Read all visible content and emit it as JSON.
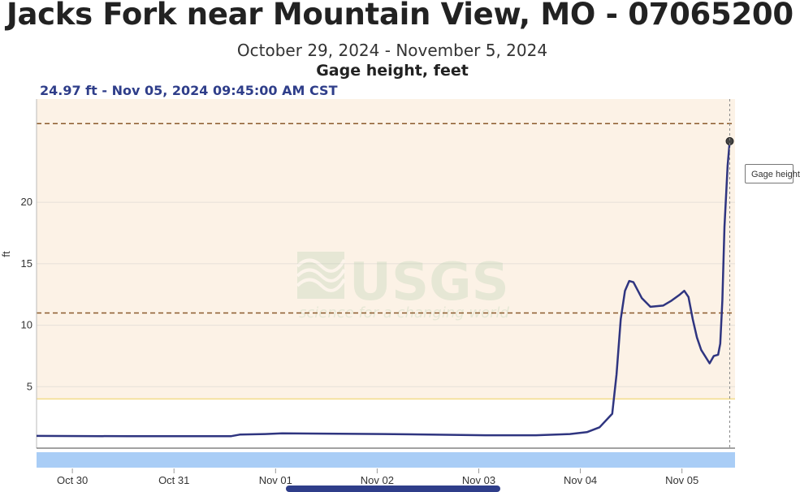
{
  "header": {
    "title": "Jacks Fork near Mountain View, MO - 07065200",
    "date_range": "October 29, 2024 - November 5, 2024",
    "parameter": "Gage height, feet",
    "latest_reading": "24.97 ft - Nov 05, 2024 09:45:00 AM CST"
  },
  "tooltip": {
    "label": "Gage height"
  },
  "watermark": {
    "logo_text": "USGS",
    "tagline": "science for a changing world"
  },
  "colors": {
    "series": "#2f3580",
    "plot_band": "#fcf2e6",
    "threshold_dashed": "#8a5a2b",
    "threshold_solid": "#f3dc8a",
    "navigator": "#a9cdf6",
    "accent_text": "#2f3e8a"
  },
  "chart_data": {
    "type": "line",
    "title": "Gage height, feet",
    "ylabel": "ft",
    "xlabel": "",
    "y_ticks": [
      5,
      10,
      15,
      20
    ],
    "ylim": [
      0,
      28.4
    ],
    "x_range": [
      "2024-10-29 14:00",
      "2024-11-05 11:00"
    ],
    "x_ticks": [
      {
        "label": "Oct 30",
        "date": "2024-10-30"
      },
      {
        "label": "Oct 31",
        "date": "2024-10-31"
      },
      {
        "label": "Nov 01",
        "date": "2024-11-01"
      },
      {
        "label": "Nov 02",
        "date": "2024-11-02"
      },
      {
        "label": "Nov 03",
        "date": "2024-11-03"
      },
      {
        "label": "Nov 04",
        "date": "2024-11-04"
      },
      {
        "label": "Nov 05",
        "date": "2024-11-05"
      }
    ],
    "band": {
      "from": 4.0,
      "to": 28.4
    },
    "thresholds": [
      {
        "value": 26.4,
        "style": "dashed"
      },
      {
        "value": 11.0,
        "style": "dashed"
      },
      {
        "value": 4.0,
        "style": "solid"
      }
    ],
    "grid": true,
    "series": [
      {
        "points": [
          [
            "2024-10-29 14:00",
            1.0
          ],
          [
            "2024-10-30 12:00",
            0.97
          ],
          [
            "2024-10-31 12:00",
            0.98
          ],
          [
            "2024-10-31 14:00",
            1.1
          ],
          [
            "2024-10-31 20:00",
            1.15
          ],
          [
            "2024-11-01 00:00",
            1.2
          ],
          [
            "2024-11-02 00:00",
            1.15
          ],
          [
            "2024-11-03 00:00",
            1.05
          ],
          [
            "2024-11-03 12:00",
            1.05
          ],
          [
            "2024-11-03 20:00",
            1.15
          ],
          [
            "2024-11-04 00:00",
            1.3
          ],
          [
            "2024-11-04 03:00",
            1.7
          ],
          [
            "2024-11-04 06:00",
            2.8
          ],
          [
            "2024-11-04 07:00",
            6.0
          ],
          [
            "2024-11-04 08:00",
            10.5
          ],
          [
            "2024-11-04 09:00",
            12.8
          ],
          [
            "2024-11-04 10:00",
            13.6
          ],
          [
            "2024-11-04 11:00",
            13.5
          ],
          [
            "2024-11-04 13:00",
            12.2
          ],
          [
            "2024-11-04 15:00",
            11.5
          ],
          [
            "2024-11-04 18:00",
            11.6
          ],
          [
            "2024-11-04 20:00",
            12.0
          ],
          [
            "2024-11-04 22:00",
            12.5
          ],
          [
            "2024-11-04 23:00",
            12.8
          ],
          [
            "2024-11-05 00:00",
            12.3
          ],
          [
            "2024-11-05 01:00",
            10.5
          ],
          [
            "2024-11-05 02:00",
            9.0
          ],
          [
            "2024-11-05 03:00",
            8.0
          ],
          [
            "2024-11-05 05:00",
            6.9
          ],
          [
            "2024-11-05 06:00",
            7.5
          ],
          [
            "2024-11-05 07:00",
            7.6
          ],
          [
            "2024-11-05 07:30",
            8.5
          ],
          [
            "2024-11-05 08:00",
            12.0
          ],
          [
            "2024-11-05 08:30",
            18.0
          ],
          [
            "2024-11-05 09:15",
            23.0
          ],
          [
            "2024-11-05 09:45",
            24.97
          ]
        ]
      }
    ]
  }
}
